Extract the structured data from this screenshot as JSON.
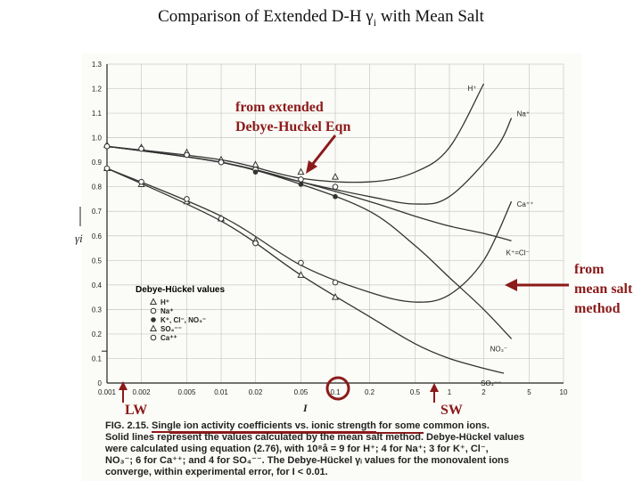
{
  "slide": {
    "title_main": "Comparison of Extended D-H γ",
    "title_sub": "i",
    "title_end": " with Mean Salt"
  },
  "annotations": {
    "extended": [
      "from extended",
      "Debye-Huckel Eqn"
    ],
    "mean_salt": [
      "from",
      "mean salt",
      "method"
    ],
    "lw": "LW",
    "sw": "SW"
  },
  "colors": {
    "annotation": "#8b1a1a",
    "curve": "#333333",
    "axis": "#222222"
  },
  "caption": {
    "fig": "FIG. 2.15.",
    "line1_underlined": "Single ion activity coefficients vs. ionic strength",
    "line1_rest": " for some common ions.",
    "line2": "Solid lines represent the values calculated by the mean salt method. Debye-Hückel values",
    "line3": "were calculated using equation (2.76), with 10⁸å = 9 for H⁺; 4 for Na⁺; 3 for K⁺, Cl⁻,",
    "line4": "NO₃⁻; 6 for Ca⁺⁺; and 4 for SO₄⁻⁻. The Debye-Hückel γᵢ values for the monovalent ions",
    "line5": "converge, within experimental error, for I < 0.01."
  },
  "chart_data": {
    "type": "line",
    "xscale": "log",
    "xlim": [
      0.001,
      10
    ],
    "ylim": [
      0,
      1.3
    ],
    "xlabel": "I",
    "ylabel": "γi",
    "x_ticks": [
      "0.001",
      "0.002",
      "0.005",
      "0.01",
      "0.02",
      "0.05",
      "0.1",
      "0.2",
      "0.5",
      "1",
      "2",
      "5",
      "10"
    ],
    "y_ticks": [
      "0",
      "0.1",
      "0.2",
      "0.3",
      "0.4",
      "0.5",
      "0.6",
      "0.7",
      "0.8",
      "0.9",
      "1.0",
      "1.1",
      "1.2",
      "1.3"
    ],
    "x_tick_values": [
      0.001,
      0.002,
      0.005,
      0.01,
      0.02,
      0.05,
      0.1,
      0.2,
      0.5,
      1,
      2,
      5,
      10
    ],
    "y_tick_values": [
      0,
      0.1,
      0.2,
      0.3,
      0.4,
      0.5,
      0.6,
      0.7,
      0.8,
      0.9,
      1.0,
      1.1,
      1.2,
      1.3
    ],
    "series": [
      {
        "name": "H+",
        "label": "H⁺",
        "x": [
          0.001,
          0.01,
          0.05,
          0.2,
          0.5,
          1,
          2
        ],
        "y": [
          0.965,
          0.91,
          0.835,
          0.82,
          0.86,
          0.96,
          1.22
        ]
      },
      {
        "name": "Na+",
        "label": "Na⁺",
        "x": [
          0.001,
          0.01,
          0.05,
          0.2,
          0.5,
          1,
          2.5,
          3.5
        ],
        "y": [
          0.965,
          0.9,
          0.82,
          0.76,
          0.73,
          0.76,
          0.95,
          1.08
        ]
      },
      {
        "name": "Ca++",
        "label": "Ca⁺⁺",
        "x": [
          0.001,
          0.01,
          0.05,
          0.2,
          0.5,
          1,
          2,
          3.5
        ],
        "y": [
          0.875,
          0.68,
          0.48,
          0.37,
          0.33,
          0.36,
          0.5,
          0.74
        ]
      },
      {
        "name": "K+Cl-",
        "label": "K⁺=Cl⁻",
        "x": [
          0.001,
          0.01,
          0.05,
          0.2,
          0.5,
          1,
          2,
          3.5
        ],
        "y": [
          0.965,
          0.9,
          0.82,
          0.74,
          0.68,
          0.64,
          0.61,
          0.58
        ]
      },
      {
        "name": "NO3-",
        "label": "NO₃⁻",
        "x": [
          0.001,
          0.01,
          0.05,
          0.2,
          0.5,
          1,
          2,
          3.5
        ],
        "y": [
          0.965,
          0.9,
          0.81,
          0.7,
          0.56,
          0.43,
          0.3,
          0.18
        ]
      },
      {
        "name": "SO4--",
        "label": "SO₄⁻⁻",
        "x": [
          0.001,
          0.01,
          0.05,
          0.2,
          0.5,
          1,
          2,
          3
        ],
        "y": [
          0.875,
          0.66,
          0.44,
          0.27,
          0.16,
          0.1,
          0.06,
          0.04
        ]
      }
    ],
    "dh_points": [
      {
        "ion": "H+",
        "marker": "triangle-open",
        "x": [
          0.001,
          0.002,
          0.005,
          0.01,
          0.02,
          0.05,
          0.1
        ],
        "y": [
          0.97,
          0.96,
          0.94,
          0.91,
          0.89,
          0.86,
          0.84
        ]
      },
      {
        "ion": "Na+",
        "marker": "circle-open",
        "x": [
          0.001,
          0.002,
          0.005,
          0.01,
          0.02,
          0.05,
          0.1
        ],
        "y": [
          0.965,
          0.955,
          0.93,
          0.9,
          0.87,
          0.83,
          0.8
        ]
      },
      {
        "ion": "K+ Cl- NO3-",
        "marker": "circle-filled",
        "x": [
          0.02,
          0.05,
          0.1
        ],
        "y": [
          0.86,
          0.81,
          0.76
        ]
      },
      {
        "ion": "SO4--",
        "marker": "triangle-open",
        "x": [
          0.001,
          0.002,
          0.005,
          0.01,
          0.02,
          0.05,
          0.1
        ],
        "y": [
          0.875,
          0.81,
          0.74,
          0.67,
          0.58,
          0.44,
          0.35
        ]
      },
      {
        "ion": "Ca++",
        "marker": "circle-open",
        "x": [
          0.001,
          0.002,
          0.005,
          0.01,
          0.02,
          0.05,
          0.1
        ],
        "y": [
          0.875,
          0.82,
          0.75,
          0.67,
          0.57,
          0.49,
          0.41
        ]
      }
    ],
    "legend": {
      "title": "Debye-Hückel values",
      "entries": [
        "H⁺",
        "Na⁺",
        "K⁺, Cl⁻, NO₃⁻",
        "SO₄⁻⁻",
        "Ca⁺⁺"
      ],
      "position": "lower-left"
    }
  }
}
